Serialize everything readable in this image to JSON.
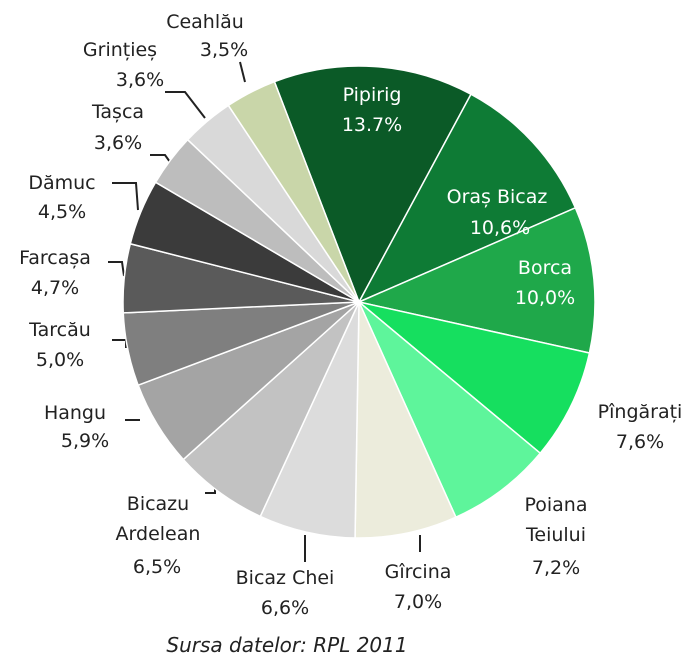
{
  "chart_data": {
    "type": "pie",
    "categories": [
      "Pipirig",
      "Oraș Bicaz",
      "Borca",
      "Pîngărați",
      "Poiana Teiului",
      "Gîrcina",
      "Bicaz Chei",
      "Bicazu Ardelean",
      "Hangu",
      "Tarcău",
      "Farcașa",
      "Dămuc",
      "Tașca",
      "Grințieș",
      "Ceahlău"
    ],
    "values": [
      13.7,
      10.6,
      10.0,
      7.6,
      7.2,
      7.0,
      6.6,
      6.5,
      5.9,
      5.0,
      4.7,
      4.5,
      3.6,
      3.6,
      3.5
    ],
    "value_labels": [
      "13.7%",
      "10,6%",
      "10,0%",
      "7,6%",
      "7,2%",
      "7,0%",
      "6,6%",
      "6,5%",
      "5,9%",
      "5,0%",
      "4,7%",
      "4,5%",
      "3,6%",
      "3,6%",
      "3,5%"
    ],
    "colors": [
      "#0b5a27",
      "#0e7b35",
      "#1fa84a",
      "#16df5f",
      "#5ef59b",
      "#ececdc",
      "#dcdcdc",
      "#c2c2c2",
      "#a4a4a4",
      "#7f7f7f",
      "#5a5a5a",
      "#3b3b3b",
      "#bdbdbd",
      "#d9d9d9",
      "#c9d6a9"
    ],
    "source": "Sursa datelor: RPL 2011"
  }
}
